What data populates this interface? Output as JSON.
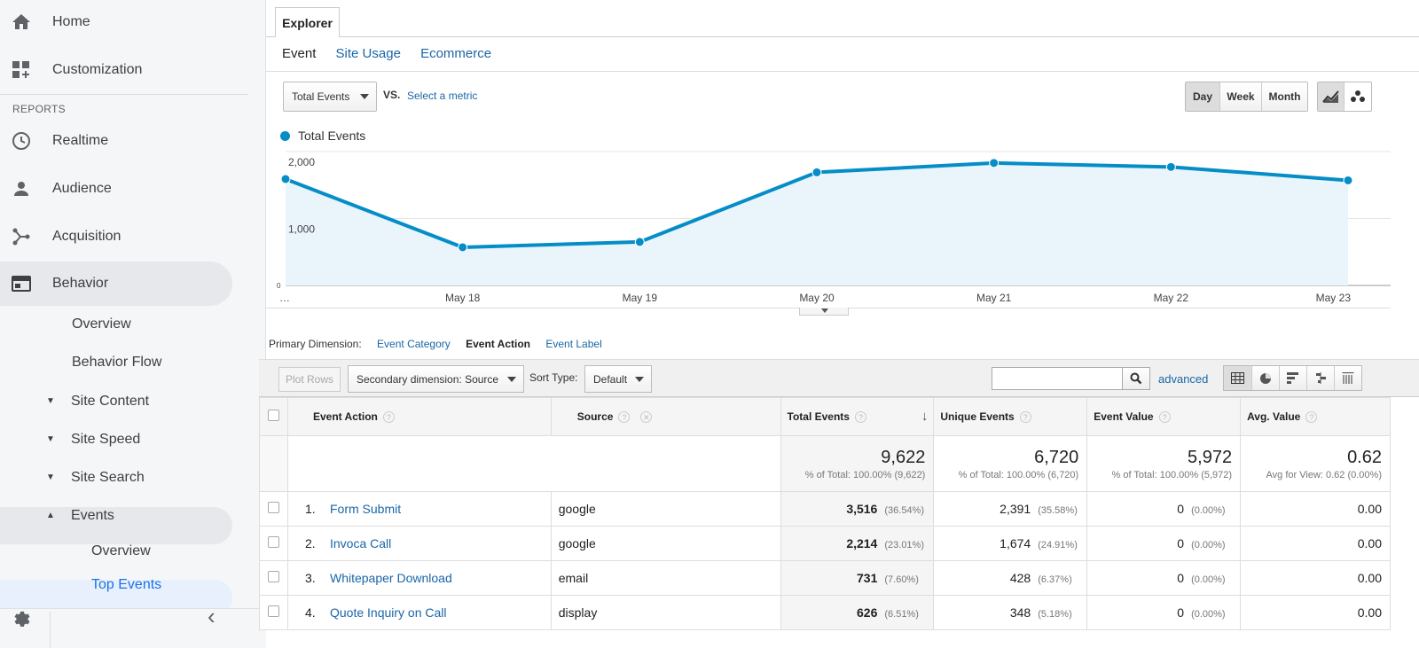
{
  "sidebar": {
    "home": "Home",
    "customization": "Customization",
    "reports_header": "REPORTS",
    "realtime": "Realtime",
    "audience": "Audience",
    "acquisition": "Acquisition",
    "behavior": "Behavior",
    "overview": "Overview",
    "behavior_flow": "Behavior Flow",
    "site_content": "Site Content",
    "site_speed": "Site Speed",
    "site_search": "Site Search",
    "events": "Events",
    "events_overview": "Overview",
    "top_events": "Top Events",
    "collapse_glyph": "‹"
  },
  "explorer": {
    "tab": "Explorer",
    "subtabs": [
      "Event",
      "Site Usage",
      "Ecommerce"
    ]
  },
  "controls": {
    "metric": "Total Events",
    "vs": "VS.",
    "select_metric": "Select a metric",
    "periods": [
      "Day",
      "Week",
      "Month"
    ]
  },
  "chart_data": {
    "type": "area",
    "series": [
      {
        "name": "Total Events",
        "values": [
          1590,
          570,
          650,
          1690,
          1830,
          1770,
          1570
        ]
      }
    ],
    "x": [
      "…",
      "May 18",
      "May 19",
      "May 20",
      "May 21",
      "May 22",
      "May 23"
    ],
    "y_ticks": [
      "2,000",
      "1,000",
      "0"
    ],
    "ylim": [
      0,
      2000
    ],
    "grid": true,
    "legend": "top-left",
    "color": "#058dc7"
  },
  "dimensions": {
    "label": "Primary Dimension:",
    "items": [
      "Event Category",
      "Event Action",
      "Event Label"
    ]
  },
  "toolbar": {
    "plot_rows": "Plot Rows",
    "secondary_dimension": "Secondary dimension: Source",
    "sort_label": "Sort Type:",
    "sort_value": "Default",
    "advanced": "advanced"
  },
  "table": {
    "headers": {
      "event_action": "Event Action",
      "source": "Source",
      "total_events": "Total Events",
      "unique_events": "Unique Events",
      "event_value": "Event Value",
      "avg_value": "Avg. Value"
    },
    "totals": {
      "total_events": "9,622",
      "total_events_sub": "% of Total: 100.00% (9,622)",
      "unique_events": "6,720",
      "unique_events_sub": "% of Total: 100.00% (6,720)",
      "event_value": "5,972",
      "event_value_sub": "% of Total: 100.00% (5,972)",
      "avg_value": "0.62",
      "avg_value_sub": "Avg for View: 0.62 (0.00%)"
    },
    "rows": [
      {
        "index": "1.",
        "action": "Form Submit",
        "source": "google",
        "total": "3,516",
        "total_pct": "(36.54%)",
        "unique": "2,391",
        "unique_pct": "(35.58%)",
        "value": "0",
        "value_pct": "(0.00%)",
        "avg": "0.00"
      },
      {
        "index": "2.",
        "action": "Invoca Call",
        "source": "google",
        "total": "2,214",
        "total_pct": "(23.01%)",
        "unique": "1,674",
        "unique_pct": "(24.91%)",
        "value": "0",
        "value_pct": "(0.00%)",
        "avg": "0.00"
      },
      {
        "index": "3.",
        "action": "Whitepaper Download",
        "source": "email",
        "total": "731",
        "total_pct": "(7.60%)",
        "unique": "428",
        "unique_pct": "(6.37%)",
        "value": "0",
        "value_pct": "(0.00%)",
        "avg": "0.00"
      },
      {
        "index": "4.",
        "action": "Quote Inquiry on Call",
        "source": "display",
        "total": "626",
        "total_pct": "(6.51%)",
        "unique": "348",
        "unique_pct": "(5.18%)",
        "value": "0",
        "value_pct": "(0.00%)",
        "avg": "0.00"
      }
    ]
  }
}
